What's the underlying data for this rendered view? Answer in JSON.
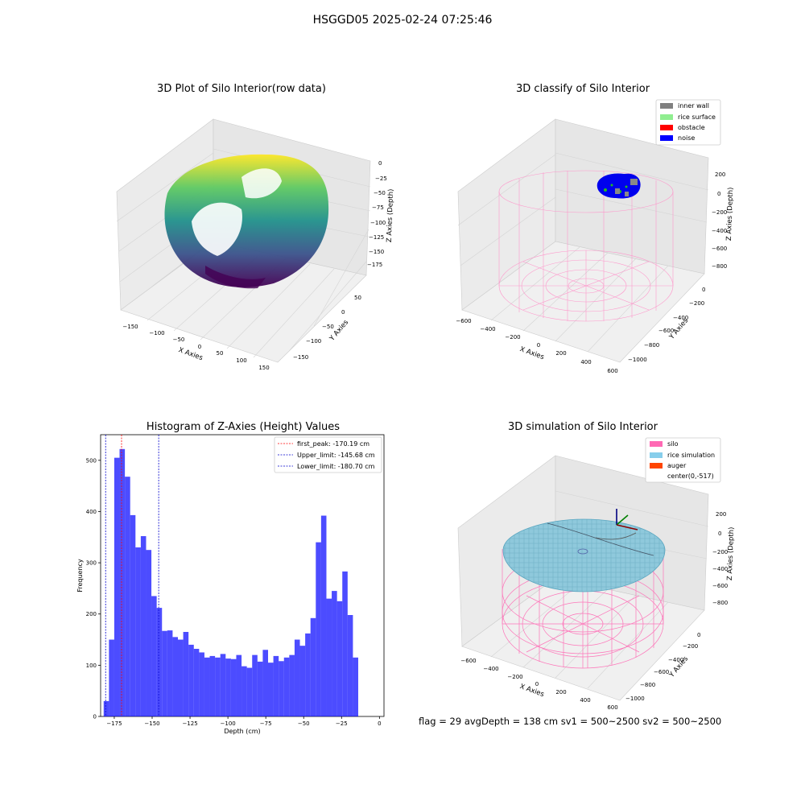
{
  "page": {
    "suptitle": "HSGGD05 2025-02-24 07:25:46",
    "footer": "flag = 29  avgDepth = 138 cm  sv1 = 500~2500  sv2 = 500~2500"
  },
  "chart_data": [
    {
      "type": "scatter",
      "title": "3D Plot of Silo Interior(row data)",
      "xlabel": "X Axies",
      "ylabel": "Y Axies",
      "zlabel": "Z Axies (Depth)",
      "xticks": [
        "−150",
        "−100",
        "−50",
        "0",
        "50",
        "100",
        "150"
      ],
      "yticks": [
        "50",
        "0",
        "−50",
        "−100",
        "−150"
      ],
      "zticks": [
        "0",
        "−25",
        "−50",
        "−75",
        "−100",
        "−125",
        "−150",
        "−175"
      ],
      "colormap": "viridis"
    },
    {
      "type": "scatter",
      "title": "3D classify of Silo Interior",
      "xlabel": "X Axies",
      "ylabel": "Y Axies",
      "zlabel": "Z Axies (Depth)",
      "xticks": [
        "−600",
        "−400",
        "−200",
        "0",
        "200",
        "400",
        "600"
      ],
      "yticks": [
        "0",
        "−200",
        "−400",
        "−600",
        "−800",
        "−1000"
      ],
      "zticks": [
        "200",
        "0",
        "−200",
        "−400",
        "−600",
        "−800"
      ],
      "legend": [
        {
          "label": "inner wall",
          "color": "#808080"
        },
        {
          "label": "rice surface",
          "color": "#90ee90"
        },
        {
          "label": "obstacle",
          "color": "#ff0000"
        },
        {
          "label": "noise",
          "color": "#0000ff"
        }
      ],
      "legend_position": "top-right"
    },
    {
      "type": "bar",
      "title": "Histogram of Z-Axies (Height) Values",
      "xlabel": "Depth (cm)",
      "ylabel": "Frequency",
      "xlim": [
        -184,
        3
      ],
      "ylim": [
        0,
        550
      ],
      "xticks": [
        -175,
        -150,
        -125,
        -100,
        -75,
        -50,
        -25,
        0
      ],
      "yticks": [
        0,
        100,
        200,
        300,
        400,
        500
      ],
      "bin_start": -182,
      "bin_width": 3.5,
      "values": [
        30,
        150,
        505,
        522,
        468,
        393,
        330,
        352,
        325,
        235,
        212,
        167,
        168,
        155,
        150,
        165,
        140,
        132,
        125,
        115,
        118,
        115,
        122,
        113,
        112,
        120,
        98,
        95,
        120,
        107,
        130,
        105,
        118,
        108,
        115,
        120,
        150,
        138,
        162,
        192,
        340,
        392,
        230,
        245,
        225,
        283,
        198,
        115
      ],
      "color": "#0000ff",
      "vlines": [
        {
          "label": "first_peak: -170.19 cm",
          "x": -170.19,
          "color": "#ff0000"
        },
        {
          "label": "Upper_limit: -145.68 cm",
          "x": -145.68,
          "color": "#0000cc"
        },
        {
          "label": "Lower_limit: -180.70 cm",
          "x": -180.7,
          "color": "#0000cc"
        }
      ],
      "legend_position": "top-right"
    },
    {
      "type": "scatter",
      "title": "3D simulation of Silo Interior",
      "xlabel": "X Axies",
      "ylabel": "Y Axies",
      "zlabel": "Z Axies (Depth)",
      "xticks": [
        "−600",
        "−400",
        "−200",
        "0",
        "200",
        "400",
        "600"
      ],
      "yticks": [
        "0",
        "−200",
        "−400",
        "−600",
        "−800",
        "−1000"
      ],
      "zticks": [
        "200",
        "0",
        "−200",
        "−400",
        "−600",
        "−800"
      ],
      "legend": [
        {
          "label": "silo",
          "color": "#ff69b4"
        },
        {
          "label": "rice simulation",
          "color": "#87ceeb"
        },
        {
          "label": "auger",
          "color": "#ff4500"
        },
        {
          "label": "center(0,-517)",
          "color": ""
        }
      ],
      "legend_position": "top-right"
    }
  ]
}
